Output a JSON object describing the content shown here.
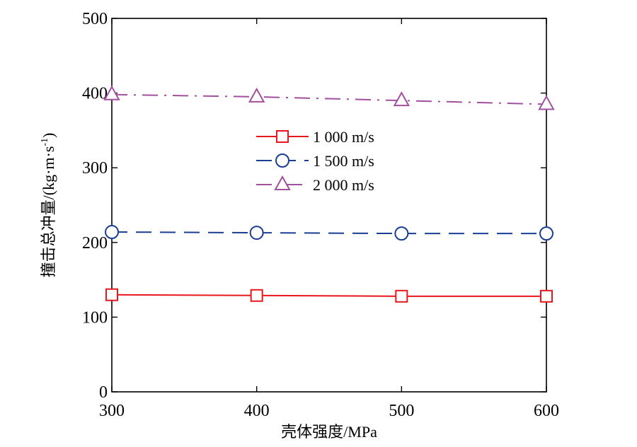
{
  "chart_data": {
    "type": "line",
    "x": [
      300,
      400,
      500,
      600
    ],
    "xlim": [
      300,
      600
    ],
    "ylim": [
      0,
      500
    ],
    "xticks": [
      "300",
      "400",
      "500",
      "600"
    ],
    "yticks": [
      "0",
      "100",
      "200",
      "300",
      "400",
      "500"
    ],
    "xlabel": "壳体强度/MPa",
    "ylabel": "撞击总冲量/(kg·m·s",
    "ylabel_sup": "-1",
    "ylabel_end": ")",
    "grid": false,
    "legend_position": "center",
    "series": [
      {
        "name": "1 000 m/s",
        "values": [
          130,
          129,
          128,
          128
        ],
        "color": "#e8171c",
        "marker": "square",
        "dash": "solid"
      },
      {
        "name": "1 500 m/s",
        "values": [
          214,
          213,
          212,
          212
        ],
        "color": "#1a3e93",
        "marker": "circle",
        "dash": "dashed"
      },
      {
        "name": "2 000 m/s",
        "values": [
          398,
          395,
          390,
          385
        ],
        "color": "#a24fa0",
        "marker": "triangle",
        "dash": "dashdot"
      }
    ]
  }
}
